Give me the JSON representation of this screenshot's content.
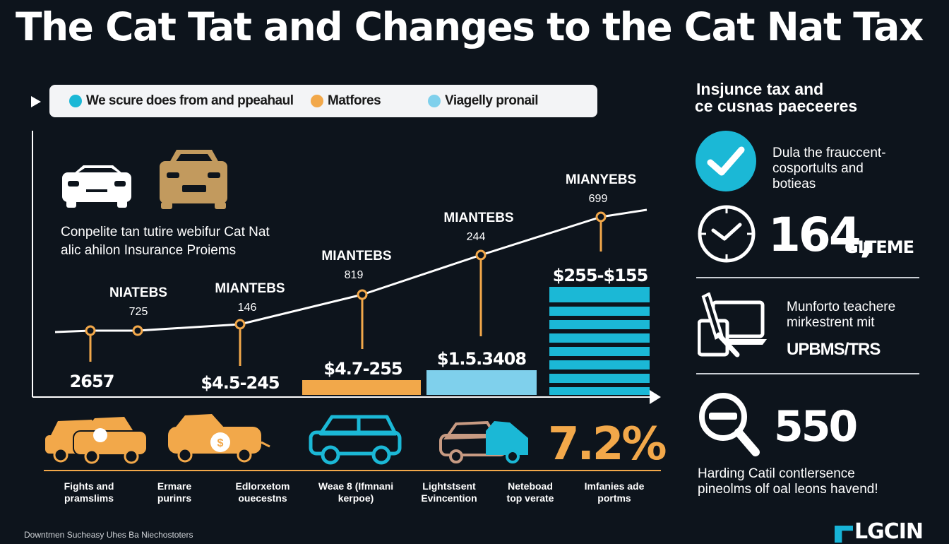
{
  "title": "The Cat Tat and Changes to the Cat Nat Tax",
  "legend": {
    "items": [
      {
        "label": "We scure does from and ppeahaul",
        "color": "#1bb8d6"
      },
      {
        "label": "Matfores",
        "color": "#f2a84a"
      },
      {
        "label": "Viagelly pronail",
        "color": "#7fd0ec"
      }
    ]
  },
  "description": {
    "line1": "Conpelite tan tutire webifur Cat Nat",
    "line2": "alic ahilon Insurance Proiems"
  },
  "chart_data": {
    "type": "line",
    "categories": [
      "Fights and pramslims",
      "Ermare purinrs",
      "Edlorxetom ouecestns",
      "Weae 8 (Ifmnani kerpoe)",
      "Lightstsent Evincention",
      "Neteboad top verate",
      "Imfanies ade portms"
    ],
    "line_points": [
      {
        "label": "NIATEBS",
        "value": "725"
      },
      {
        "label": "MIANTEBS",
        "value": "146"
      },
      {
        "label": "MIANTEBS",
        "value": "819"
      },
      {
        "label": "MIANTEBS",
        "value": "244"
      },
      {
        "label": "MIANYEBS",
        "value": "699"
      }
    ],
    "bars": [
      {
        "label": "2657"
      },
      {
        "label": "$4.5-245"
      },
      {
        "label": "$4.7-255",
        "color": "#f2a84a"
      },
      {
        "label": "$1.5.3408",
        "color": "#7fd0ec"
      },
      {
        "label": "$255-$155",
        "color": "#1bb8d6"
      }
    ],
    "highlight": "7.2%"
  },
  "right_panel": {
    "heading_line1": "Insjunce tax and",
    "heading_line2": "ce cusnas paeceeres",
    "item1_line1": "Dula the frauccent-",
    "item1_line2": "cosportults and",
    "item1_line3": "botieas",
    "stat1": "164,",
    "stat1_suffix": "GLTEME",
    "item2_line1": "Munforto teachere",
    "item2_line2": "mirkestrent mit",
    "item2_bold": "UPBMS/TRS",
    "stat2": "550",
    "item3_line1": "Harding Catil contlersence",
    "item3_line2": "pineolms olf oal leons havend!"
  },
  "footnote": "Downtmen Sucheasy Uhes Ba Niechostoters",
  "brand": "LGCIN"
}
